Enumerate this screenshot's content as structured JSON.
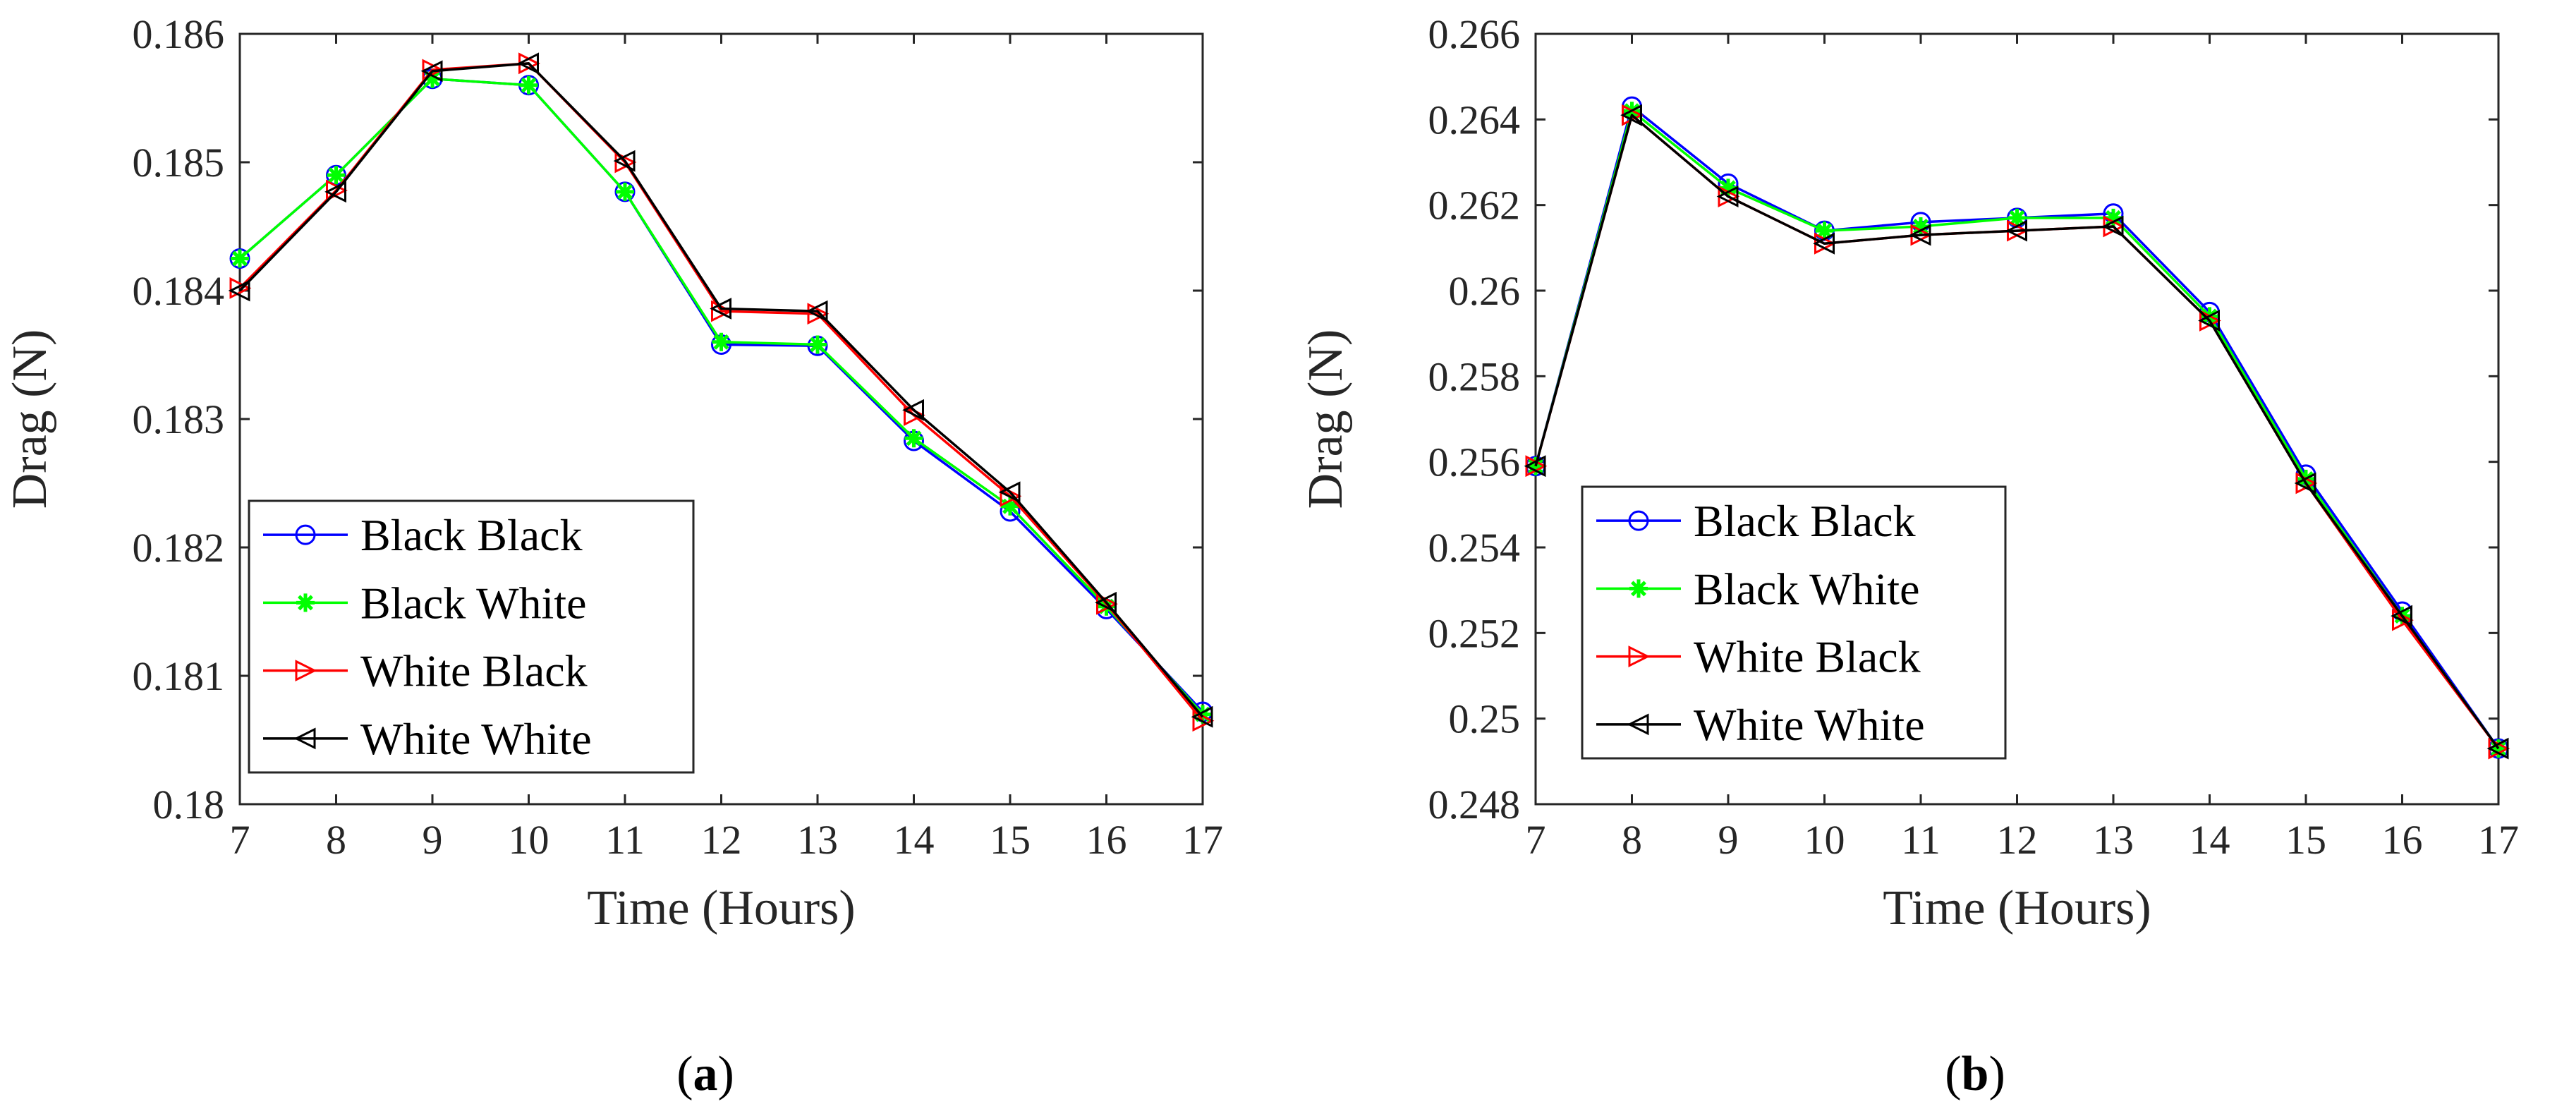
{
  "chart_data": [
    {
      "type": "line",
      "panel_label": {
        "open": "(",
        "letter": "a",
        "close": ")"
      },
      "xlabel": "Time (Hours)",
      "ylabel": "Drag (N)",
      "x": [
        7,
        8,
        9,
        10,
        11,
        12,
        13,
        14,
        15,
        16,
        17
      ],
      "xlim": [
        7,
        17
      ],
      "ylim": [
        0.18,
        0.186
      ],
      "xticks": [
        7,
        8,
        9,
        10,
        11,
        12,
        13,
        14,
        15,
        16,
        17
      ],
      "yticks": [
        0.18,
        0.181,
        0.182,
        0.183,
        0.184,
        0.185,
        0.186
      ],
      "ytick_labels": [
        "0.18",
        "0.181",
        "0.182",
        "0.183",
        "0.184",
        "0.185",
        "0.186"
      ],
      "legend_position": "lower-left",
      "series": [
        {
          "name": "Black Black",
          "color": "#0000ff",
          "marker": "circle",
          "values": [
            0.18425,
            0.1849,
            0.18565,
            0.1856,
            0.18477,
            0.18358,
            0.18357,
            0.18283,
            0.18228,
            0.18152,
            0.18072
          ]
        },
        {
          "name": "Black White",
          "color": "#00ff00",
          "marker": "asterisk",
          "values": [
            0.18425,
            0.1849,
            0.18565,
            0.1856,
            0.18477,
            0.1836,
            0.18358,
            0.18285,
            0.18232,
            0.18154,
            0.1807
          ]
        },
        {
          "name": "White Black",
          "color": "#ff0000",
          "marker": "triangle-right",
          "values": [
            0.18402,
            0.18478,
            0.18572,
            0.18577,
            0.185,
            0.18384,
            0.18382,
            0.18303,
            0.1824,
            0.18156,
            0.18065
          ]
        },
        {
          "name": "White White",
          "color": "#000000",
          "marker": "triangle-left",
          "values": [
            0.184,
            0.18477,
            0.18571,
            0.18577,
            0.18501,
            0.18386,
            0.18384,
            0.18307,
            0.18243,
            0.18157,
            0.18068
          ]
        }
      ]
    },
    {
      "type": "line",
      "panel_label": {
        "open": "(",
        "letter": "b",
        "close": ")"
      },
      "xlabel": "Time (Hours)",
      "ylabel": "Drag (N)",
      "x": [
        7,
        8,
        9,
        10,
        11,
        12,
        13,
        14,
        15,
        16,
        17
      ],
      "xlim": [
        7,
        17
      ],
      "ylim": [
        0.248,
        0.266
      ],
      "xticks": [
        7,
        8,
        9,
        10,
        11,
        12,
        13,
        14,
        15,
        16,
        17
      ],
      "yticks": [
        0.248,
        0.25,
        0.252,
        0.254,
        0.256,
        0.258,
        0.26,
        0.262,
        0.264,
        0.266
      ],
      "ytick_labels": [
        "0.248",
        "0.25",
        "0.252",
        "0.254",
        "0.256",
        "0.258",
        "0.26",
        "0.262",
        "0.264",
        "0.266"
      ],
      "legend_position": "lower-left",
      "series": [
        {
          "name": "Black Black",
          "color": "#0000ff",
          "marker": "circle",
          "values": [
            0.2559,
            0.2643,
            0.2625,
            0.2614,
            0.2616,
            0.2617,
            0.2618,
            0.2595,
            0.2557,
            0.2525,
            0.2493
          ]
        },
        {
          "name": "Black White",
          "color": "#00ff00",
          "marker": "asterisk",
          "values": [
            0.2559,
            0.2642,
            0.2624,
            0.2614,
            0.2615,
            0.2617,
            0.2617,
            0.2594,
            0.2556,
            0.2524,
            0.2493
          ]
        },
        {
          "name": "White Black",
          "color": "#ff0000",
          "marker": "triangle-right",
          "values": [
            0.2559,
            0.2641,
            0.2622,
            0.2611,
            0.2613,
            0.2614,
            0.2615,
            0.2593,
            0.2555,
            0.2523,
            0.2493
          ]
        },
        {
          "name": "White White",
          "color": "#000000",
          "marker": "triangle-left",
          "values": [
            0.2559,
            0.2641,
            0.2622,
            0.2611,
            0.2613,
            0.2614,
            0.2615,
            0.2593,
            0.2555,
            0.2524,
            0.2493
          ]
        }
      ]
    }
  ]
}
